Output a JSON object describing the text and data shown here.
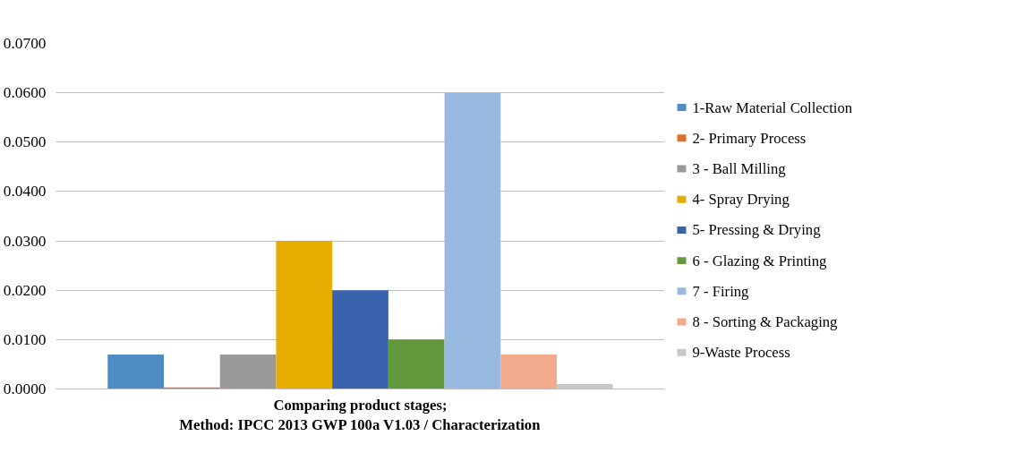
{
  "chart_data": {
    "type": "bar",
    "xlabel": "Comparing product stages;\nMethod: IPCC 2013 GWP 100a V1.03 / Characterization",
    "categories": [
      null
    ],
    "series": [
      {
        "name": "1-Raw Material Collection",
        "color": "#4f8bc4",
        "values": [
          0.007
        ]
      },
      {
        "name": "2- Primary Process",
        "color": "#e0702e",
        "values": [
          0.0003
        ]
      },
      {
        "name": "3 - Ball Milling",
        "color": "#999999",
        "values": [
          0.007
        ]
      },
      {
        "name": "4- Spray Drying",
        "color": "#e6ac00",
        "values": [
          0.03
        ]
      },
      {
        "name": "5- Pressing & Drying",
        "color": "#3a63ad",
        "values": [
          0.02
        ]
      },
      {
        "name": "6 - Glazing & Printing",
        "color": "#62993d",
        "values": [
          0.01
        ]
      },
      {
        "name": "7 - Firing",
        "color": "#9ab9e0",
        "values": [
          0.06
        ]
      },
      {
        "name": "8 - Sorting & Packaging",
        "color": "#f2a98c",
        "values": [
          0.007
        ]
      },
      {
        "name": "9-Waste Process",
        "color": "#c8c8c8",
        "values": [
          0.001
        ]
      }
    ],
    "ylim": [
      0,
      0.07
    ],
    "yticks": [
      {
        "value": 0,
        "label": "0.0000"
      },
      {
        "value": 0.01,
        "label": "0.0100"
      },
      {
        "value": 0.02,
        "label": "0.0200"
      },
      {
        "value": 0.03,
        "label": "0.0300"
      },
      {
        "value": 0.04,
        "label": "0.0400"
      },
      {
        "value": 0.05,
        "label": "0.0500"
      },
      {
        "value": 0.06,
        "label": "0.0600"
      },
      {
        "value": 0.07,
        "label": "0.0700"
      }
    ],
    "grid": "y",
    "legend": "right"
  }
}
